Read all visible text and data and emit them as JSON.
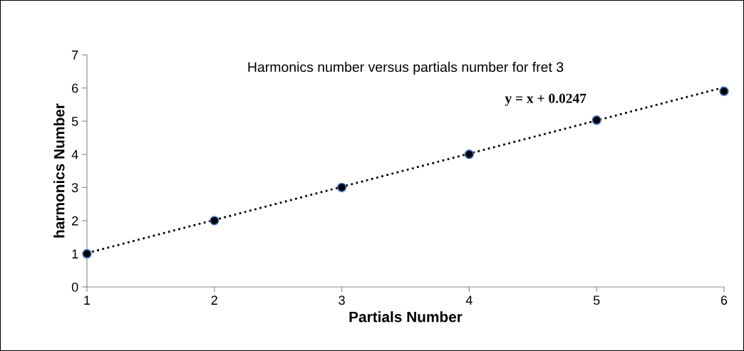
{
  "chart_data": {
    "type": "scatter",
    "title": "Harmonics number versus partials number for fret 3",
    "xlabel": "Partials Number",
    "ylabel": "harmonics Number",
    "series": [
      {
        "color": "#000000",
        "x": [
          1,
          2,
          3,
          4,
          5,
          6
        ],
        "values": [
          1,
          2,
          3,
          4,
          5.03,
          5.9
        ],
        "marker": "circle"
      },
      {
        "type": "line",
        "color": "#000000",
        "x": [
          1,
          6
        ],
        "values": [
          1.02,
          6.02
        ],
        "line_style": "dotted"
      }
    ],
    "annotations": [
      "y = x + 0.0247"
    ],
    "xlim": [
      1,
      6
    ],
    "ylim": [
      0,
      7
    ],
    "xticks": [
      1,
      2,
      3,
      4,
      5,
      6
    ],
    "yticks": [
      0,
      1,
      2,
      3,
      4,
      5,
      6,
      7
    ],
    "grid": false,
    "legend": false
  }
}
